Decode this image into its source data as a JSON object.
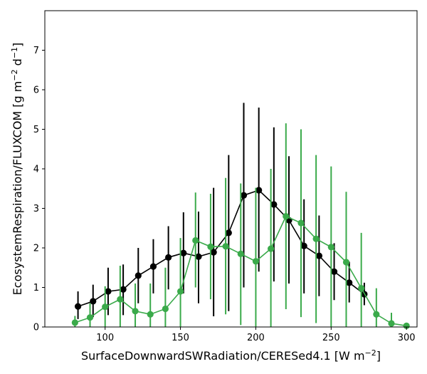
{
  "chart_data": {
    "type": "line",
    "xlabel": "SurfaceDownwardSWRadiation/CERESed4.1 [W m",
    "xlabel_unit_sup": "−2",
    "xlabel_suffix": "]",
    "ylabel": "EcosystemRespiration/FLUXCOM [g m",
    "ylabel_sup1": "−2",
    "ylabel_mid": " d",
    "ylabel_sup2": "−1",
    "ylabel_suffix": "]",
    "xlim": [
      60,
      307
    ],
    "ylim": [
      0,
      8
    ],
    "xticks": [
      100,
      150,
      200,
      250,
      300
    ],
    "yticks": [
      0,
      1,
      2,
      3,
      4,
      5,
      6,
      7
    ],
    "grid": false,
    "series": [
      {
        "color": "#000000",
        "points": [
          {
            "x": 82,
            "y": 0.52,
            "lo": 0.2,
            "hi": 0.9
          },
          {
            "x": 92,
            "y": 0.65,
            "lo": 0.25,
            "hi": 1.07
          },
          {
            "x": 102,
            "y": 0.9,
            "lo": 0.3,
            "hi": 1.5
          },
          {
            "x": 112,
            "y": 0.95,
            "lo": 0.3,
            "hi": 1.58
          },
          {
            "x": 122,
            "y": 1.3,
            "lo": 0.6,
            "hi": 2.0
          },
          {
            "x": 132,
            "y": 1.53,
            "lo": 0.85,
            "hi": 2.22
          },
          {
            "x": 142,
            "y": 1.76,
            "lo": 0.95,
            "hi": 2.55
          },
          {
            "x": 152,
            "y": 1.87,
            "lo": 0.85,
            "hi": 2.9
          },
          {
            "x": 162,
            "y": 1.78,
            "lo": 0.6,
            "hi": 2.92
          },
          {
            "x": 172,
            "y": 1.89,
            "lo": 0.27,
            "hi": 3.52
          },
          {
            "x": 182,
            "y": 2.38,
            "lo": 0.4,
            "hi": 4.35
          },
          {
            "x": 192,
            "y": 3.33,
            "lo": 1.0,
            "hi": 5.67
          },
          {
            "x": 202,
            "y": 3.46,
            "lo": 1.4,
            "hi": 5.55
          },
          {
            "x": 212,
            "y": 3.1,
            "lo": 1.15,
            "hi": 5.05
          },
          {
            "x": 222,
            "y": 2.7,
            "lo": 1.1,
            "hi": 4.32
          },
          {
            "x": 232,
            "y": 2.05,
            "lo": 0.85,
            "hi": 3.23
          },
          {
            "x": 242,
            "y": 1.8,
            "lo": 0.78,
            "hi": 2.82
          },
          {
            "x": 252,
            "y": 1.4,
            "lo": 0.68,
            "hi": 2.12
          },
          {
            "x": 262,
            "y": 1.12,
            "lo": 0.62,
            "hi": 1.65
          },
          {
            "x": 272,
            "y": 0.83,
            "lo": 0.55,
            "hi": 1.12
          }
        ]
      },
      {
        "color": "#3aaa4a",
        "points": [
          {
            "x": 80,
            "y": 0.11,
            "lo": 0.0,
            "hi": 0.28
          },
          {
            "x": 90,
            "y": 0.24,
            "lo": 0.0,
            "hi": 0.6
          },
          {
            "x": 100,
            "y": 0.51,
            "lo": 0.0,
            "hi": 1.03
          },
          {
            "x": 110,
            "y": 0.7,
            "lo": 0.0,
            "hi": 1.55
          },
          {
            "x": 120,
            "y": 0.4,
            "lo": 0.0,
            "hi": 1.1
          },
          {
            "x": 130,
            "y": 0.32,
            "lo": 0.0,
            "hi": 1.1
          },
          {
            "x": 140,
            "y": 0.46,
            "lo": 0.0,
            "hi": 1.5
          },
          {
            "x": 150,
            "y": 0.9,
            "lo": 0.0,
            "hi": 2.25
          },
          {
            "x": 160,
            "y": 2.19,
            "lo": 1.0,
            "hi": 3.4
          },
          {
            "x": 170,
            "y": 2.03,
            "lo": 0.7,
            "hi": 3.37
          },
          {
            "x": 180,
            "y": 2.04,
            "lo": 0.32,
            "hi": 3.77
          },
          {
            "x": 190,
            "y": 1.85,
            "lo": 0.05,
            "hi": 3.63
          },
          {
            "x": 200,
            "y": 1.66,
            "lo": 0.0,
            "hi": 3.52
          },
          {
            "x": 210,
            "y": 1.98,
            "lo": 0.0,
            "hi": 4.0
          },
          {
            "x": 220,
            "y": 2.8,
            "lo": 0.45,
            "hi": 5.15
          },
          {
            "x": 230,
            "y": 2.63,
            "lo": 0.25,
            "hi": 5.0
          },
          {
            "x": 240,
            "y": 2.23,
            "lo": 0.1,
            "hi": 4.35
          },
          {
            "x": 250,
            "y": 2.02,
            "lo": 0.0,
            "hi": 4.06
          },
          {
            "x": 260,
            "y": 1.64,
            "lo": 0.0,
            "hi": 3.42
          },
          {
            "x": 270,
            "y": 0.98,
            "lo": 0.0,
            "hi": 2.38
          },
          {
            "x": 280,
            "y": 0.32,
            "lo": 0.0,
            "hi": 0.98
          },
          {
            "x": 290,
            "y": 0.09,
            "lo": 0.0,
            "hi": 0.36
          },
          {
            "x": 300,
            "y": 0.03,
            "lo": 0.0,
            "hi": 0.08
          }
        ]
      }
    ]
  }
}
